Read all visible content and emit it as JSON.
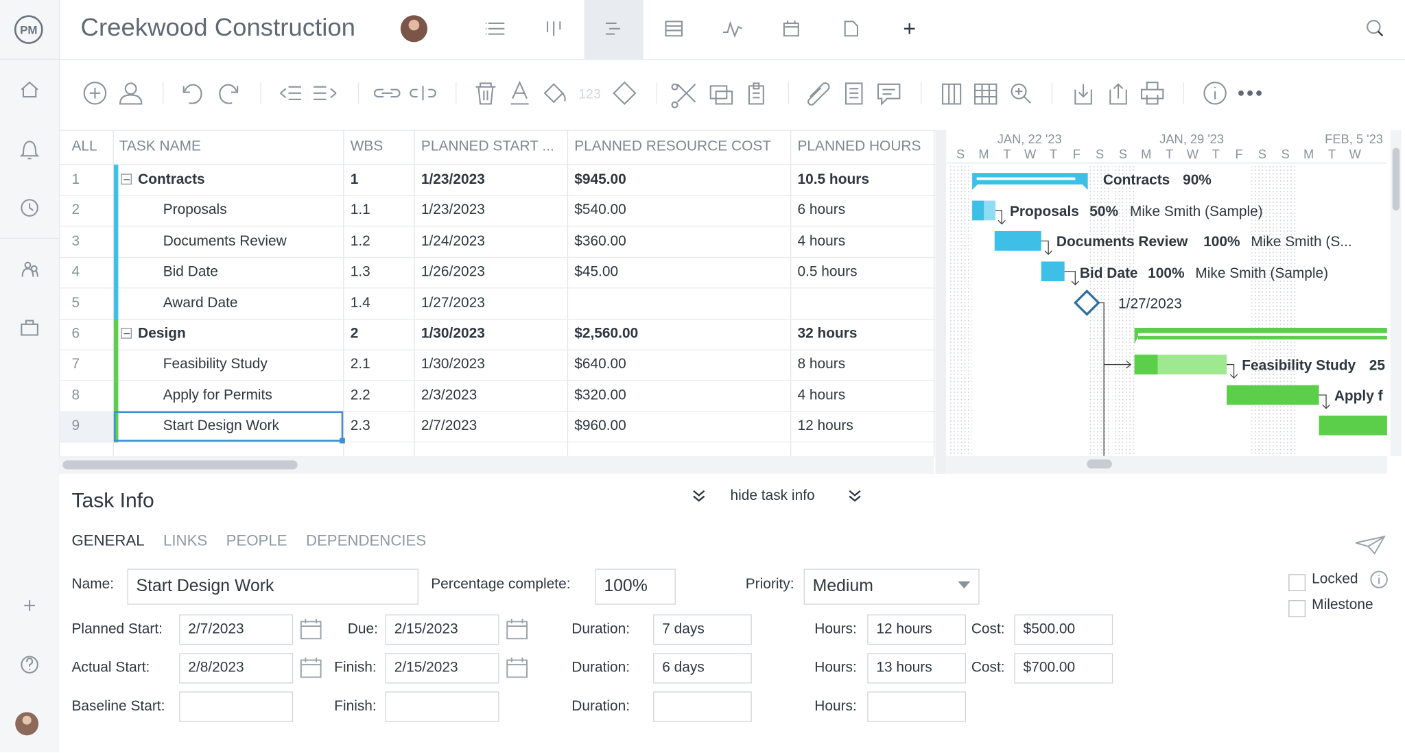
{
  "header": {
    "logo": "PM",
    "project_title": "Creekwood Construction"
  },
  "toolbar": {
    "number_format_icon": "123"
  },
  "table": {
    "columns": [
      "ALL",
      "TASK NAME",
      "WBS",
      "PLANNED START ...",
      "PLANNED RESOURCE COST",
      "PLANNED HOURS"
    ],
    "rows": [
      {
        "num": "1",
        "name": "Contracts",
        "wbs": "1",
        "planned_start": "1/23/2023",
        "planned_cost": "$945.00",
        "planned_hours": "10.5 hours",
        "summary": true,
        "color": "#3dbfe8"
      },
      {
        "num": "2",
        "name": "Proposals",
        "wbs": "1.1",
        "planned_start": "1/23/2023",
        "planned_cost": "$540.00",
        "planned_hours": "6 hours",
        "color": "#3dbfe8"
      },
      {
        "num": "3",
        "name": "Documents Review",
        "wbs": "1.2",
        "planned_start": "1/24/2023",
        "planned_cost": "$360.00",
        "planned_hours": "4 hours",
        "color": "#3dbfe8"
      },
      {
        "num": "4",
        "name": "Bid Date",
        "wbs": "1.3",
        "planned_start": "1/26/2023",
        "planned_cost": "$45.00",
        "planned_hours": "0.5 hours",
        "color": "#3dbfe8"
      },
      {
        "num": "5",
        "name": "Award Date",
        "wbs": "1.4",
        "planned_start": "1/27/2023",
        "color": "#3dbfe8"
      },
      {
        "num": "6",
        "name": "Design",
        "wbs": "2",
        "planned_start": "1/30/2023",
        "planned_cost": "$2,560.00",
        "planned_hours": "32 hours",
        "summary": true,
        "color": "#5ccf4a"
      },
      {
        "num": "7",
        "name": "Feasibility Study",
        "wbs": "2.1",
        "planned_start": "1/30/2023",
        "planned_cost": "$640.00",
        "planned_hours": "8 hours",
        "color": "#5ccf4a"
      },
      {
        "num": "8",
        "name": "Apply for Permits",
        "wbs": "2.2",
        "planned_start": "2/3/2023",
        "planned_cost": "$320.00",
        "planned_hours": "4 hours",
        "color": "#5ccf4a"
      },
      {
        "num": "9",
        "name": "Start Design Work",
        "wbs": "2.3",
        "planned_start": "2/7/2023",
        "planned_cost": "$960.00",
        "planned_hours": "12 hours",
        "color": "#5ccf4a",
        "selected": true
      }
    ]
  },
  "gantt": {
    "weeks": [
      "JAN, 22 '23",
      "JAN, 29 '23",
      "FEB, 5 '23"
    ],
    "days": [
      "S",
      "M",
      "T",
      "W",
      "T",
      "F",
      "S",
      "S",
      "M",
      "T",
      "W",
      "T",
      "F",
      "S",
      "S",
      "M",
      "T",
      "W"
    ],
    "contracts": {
      "label": "Contracts",
      "percent": "90%"
    },
    "proposals": {
      "label": "Proposals",
      "percent": "50%",
      "assignee": "Mike Smith (Sample)"
    },
    "documents_review": {
      "label": "Documents Review",
      "percent": "100%",
      "assignee": "Mike Smith (S..."
    },
    "bid_date": {
      "label": "Bid Date",
      "percent": "100%",
      "assignee": "Mike Smith (Sample)"
    },
    "award_date": {
      "date": "1/27/2023"
    },
    "feasibility_study": {
      "label": "Feasibility Study",
      "percent": "25"
    },
    "apply_for_permits": {
      "label": "Apply f"
    }
  },
  "task_info": {
    "title": "Task Info",
    "toggle": "hide task info",
    "tabs": [
      "GENERAL",
      "LINKS",
      "PEOPLE",
      "DEPENDENCIES"
    ],
    "name": {
      "label": "Name:",
      "value": "Start Design Work"
    },
    "percent_complete": {
      "label": "Percentage complete:",
      "value": "100%"
    },
    "priority": {
      "label": "Priority:",
      "value": "Medium"
    },
    "dates": [
      {
        "start_label": "Planned Start:",
        "start": "2/7/2023",
        "end_label": "Due:",
        "end": "2/15/2023",
        "duration_label": "Duration:",
        "duration": "7 days",
        "hours_label": "Hours:",
        "hours": "12 hours",
        "cost_label": "Cost:",
        "cost": "$500.00"
      },
      {
        "start_label": "Actual Start:",
        "start": "2/8/2023",
        "end_label": "Finish:",
        "end": "2/15/2023",
        "duration_label": "Duration:",
        "duration": "6 days",
        "hours_label": "Hours:",
        "hours": "13 hours",
        "cost_label": "Cost:",
        "cost": "$700.00"
      },
      {
        "start_label": "Baseline Start:",
        "end_label": "Finish:",
        "duration_label": "Duration:",
        "hours_label": "Hours:"
      }
    ],
    "checkboxes": [
      "Locked",
      "Milestone"
    ]
  }
}
